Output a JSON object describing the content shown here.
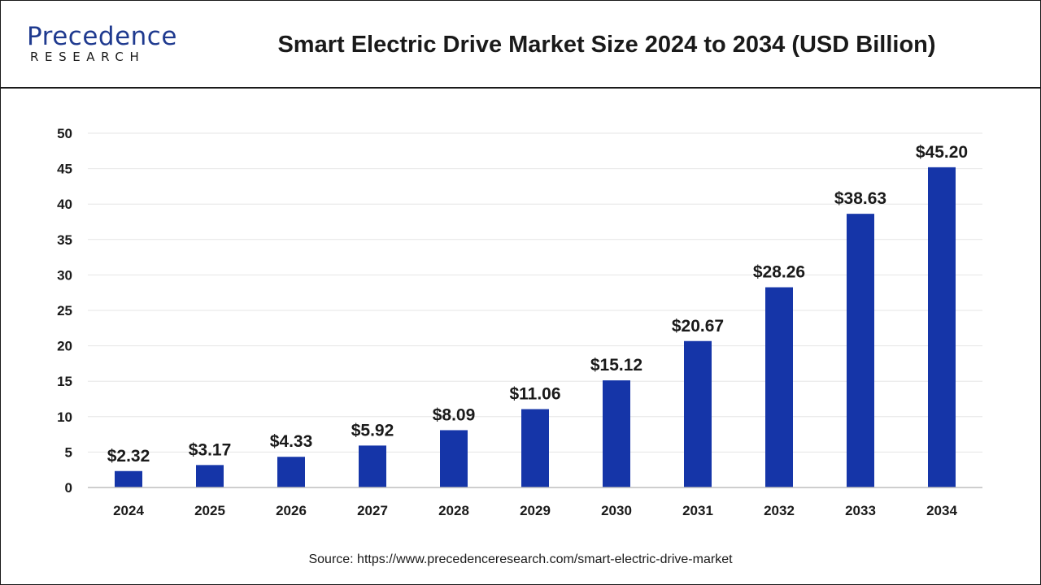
{
  "header": {
    "logo_word": "Precedence",
    "logo_sub": "RESEARCH",
    "title": "Smart Electric Drive Market Size 2024 to 2034 (USD Billion)"
  },
  "colors": {
    "bar": "#1535a8",
    "text": "#1a1a1a",
    "grid": "#e6e6e6",
    "logo": "#1f3a8f"
  },
  "chart_data": {
    "type": "bar",
    "title": "Smart Electric Drive Market Size 2024 to 2034 (USD Billion)",
    "xlabel": "",
    "ylabel": "",
    "categories": [
      "2024",
      "2025",
      "2026",
      "2027",
      "2028",
      "2029",
      "2030",
      "2031",
      "2032",
      "2033",
      "2034"
    ],
    "values": [
      2.32,
      3.17,
      4.33,
      5.92,
      8.09,
      11.06,
      15.12,
      20.67,
      28.26,
      38.63,
      45.2
    ],
    "data_labels": [
      "$2.32",
      "$3.17",
      "$4.33",
      "$5.92",
      "$8.09",
      "$11.06",
      "$15.12",
      "$20.67",
      "$28.26",
      "$38.63",
      "$45.20"
    ],
    "ylim": [
      0,
      50
    ],
    "yticks": [
      "0",
      "5",
      "10",
      "15",
      "20",
      "25",
      "30",
      "35",
      "40",
      "45",
      "50"
    ],
    "grid": true,
    "legend": "none"
  },
  "footer": {
    "source": "Source: https://www.precedenceresearch.com/smart-electric-drive-market"
  }
}
